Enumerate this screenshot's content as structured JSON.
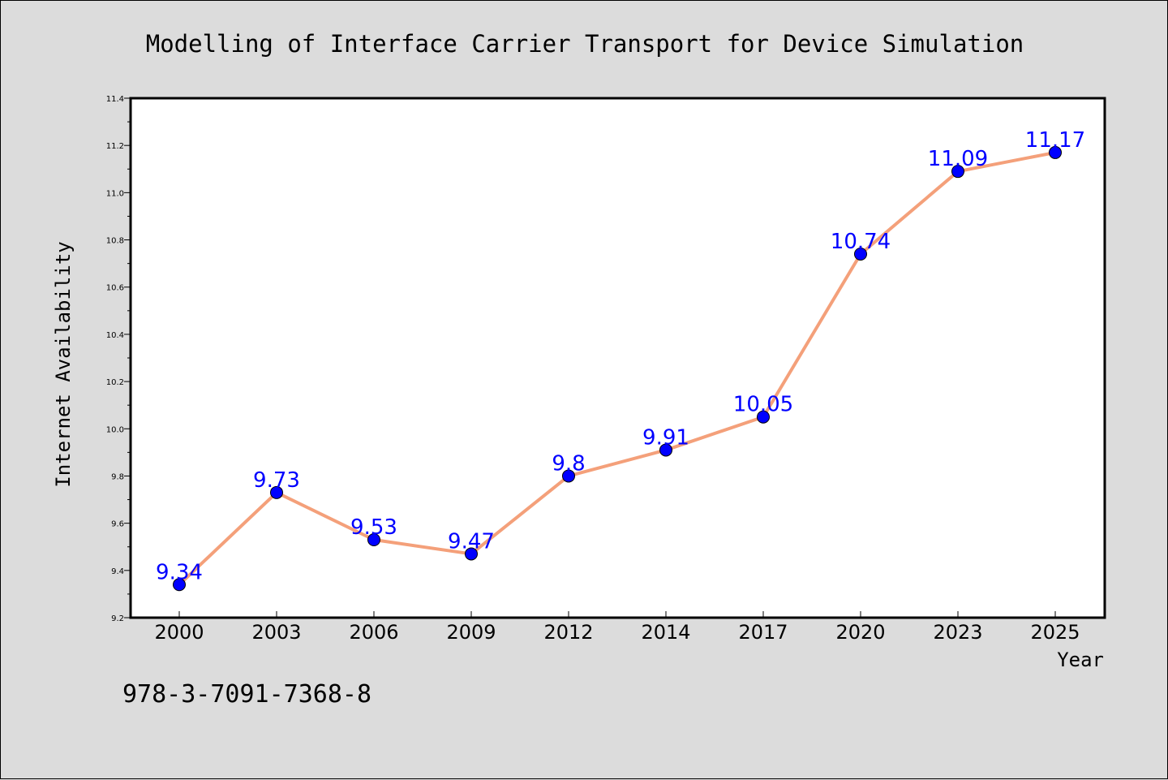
{
  "chart_data": {
    "type": "line",
    "title": "Modelling of Interface Carrier Transport for Device Simulation",
    "xlabel": "Year",
    "ylabel": "Internet Availability",
    "categories": [
      "2000",
      "2003",
      "2006",
      "2009",
      "2012",
      "2014",
      "2017",
      "2020",
      "2023",
      "2025"
    ],
    "series": [
      {
        "values": [
          9.34,
          9.73,
          9.53,
          9.47,
          9.8,
          9.91,
          10.05,
          10.74,
          11.09,
          11.17
        ],
        "data_labels": [
          "9.34",
          "9.73",
          "9.53",
          "9.47",
          "9.8",
          "9.91",
          "10.05",
          "10.74",
          "11.09",
          "11.17"
        ],
        "line_color": "#f4a07a",
        "marker_color": "#0000ff"
      }
    ],
    "ylim": [
      9.2,
      11.4
    ],
    "yticks": [
      "9.2",
      "9.4",
      "9.6",
      "9.8",
      "10.0",
      "10.2",
      "10.4",
      "10.6",
      "10.8",
      "11.0",
      "11.2",
      "11.4"
    ],
    "grid": false,
    "legend": "none"
  },
  "footnote": "978-3-7091-7368-8",
  "colors": {
    "background": "#dcdcdc",
    "plot_background": "#ffffff",
    "line": "#f4a07a",
    "marker": "#0000ff",
    "data_label": "#0000ff"
  }
}
